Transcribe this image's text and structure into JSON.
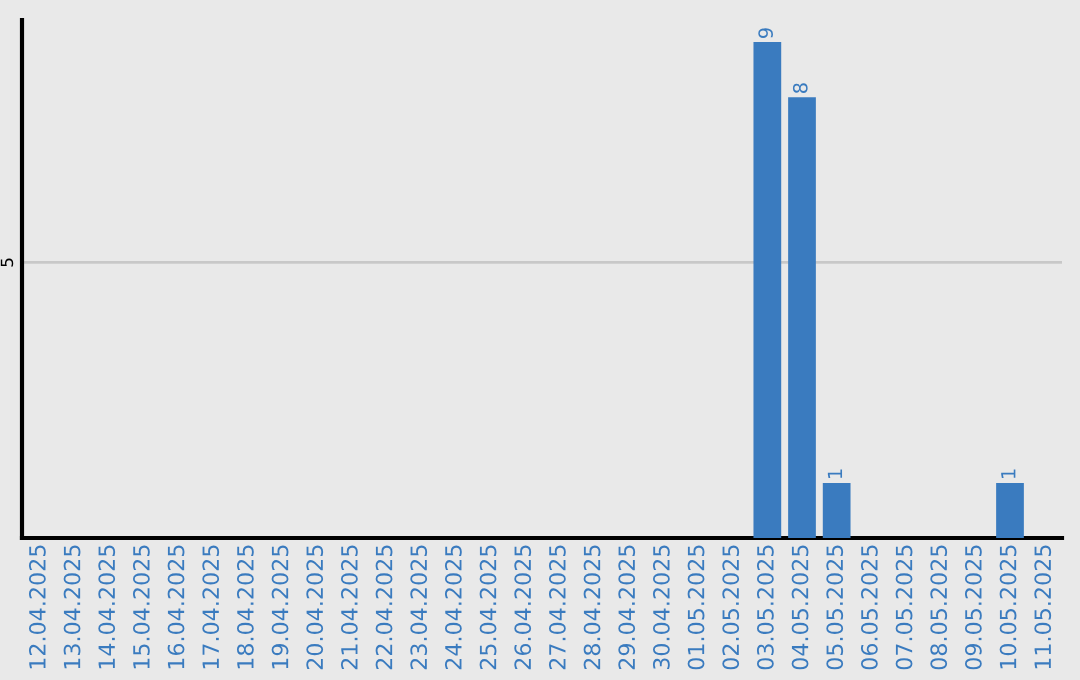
{
  "chart_data": {
    "type": "bar",
    "categories": [
      "12.04.2025",
      "13.04.2025",
      "14.04.2025",
      "15.04.2025",
      "16.04.2025",
      "17.04.2025",
      "18.04.2025",
      "19.04.2025",
      "20.04.2025",
      "21.04.2025",
      "22.04.2025",
      "23.04.2025",
      "24.04.2025",
      "25.04.2025",
      "26.04.2025",
      "27.04.2025",
      "28.04.2025",
      "29.04.2025",
      "30.04.2025",
      "01.05.2025",
      "02.05.2025",
      "03.05.2025",
      "04.05.2025",
      "05.05.2025",
      "06.05.2025",
      "07.05.2025",
      "08.05.2025",
      "09.05.2025",
      "10.05.2025",
      "11.05.2025"
    ],
    "values": [
      null,
      null,
      null,
      null,
      null,
      null,
      null,
      null,
      null,
      null,
      null,
      null,
      null,
      null,
      null,
      null,
      null,
      null,
      null,
      null,
      null,
      9,
      8,
      1,
      null,
      null,
      null,
      null,
      1,
      null
    ],
    "data_labels": true,
    "color": "#3a7bbf",
    "ylim": [
      0,
      9.4
    ],
    "yticks": [
      5
    ],
    "grid": "y"
  }
}
